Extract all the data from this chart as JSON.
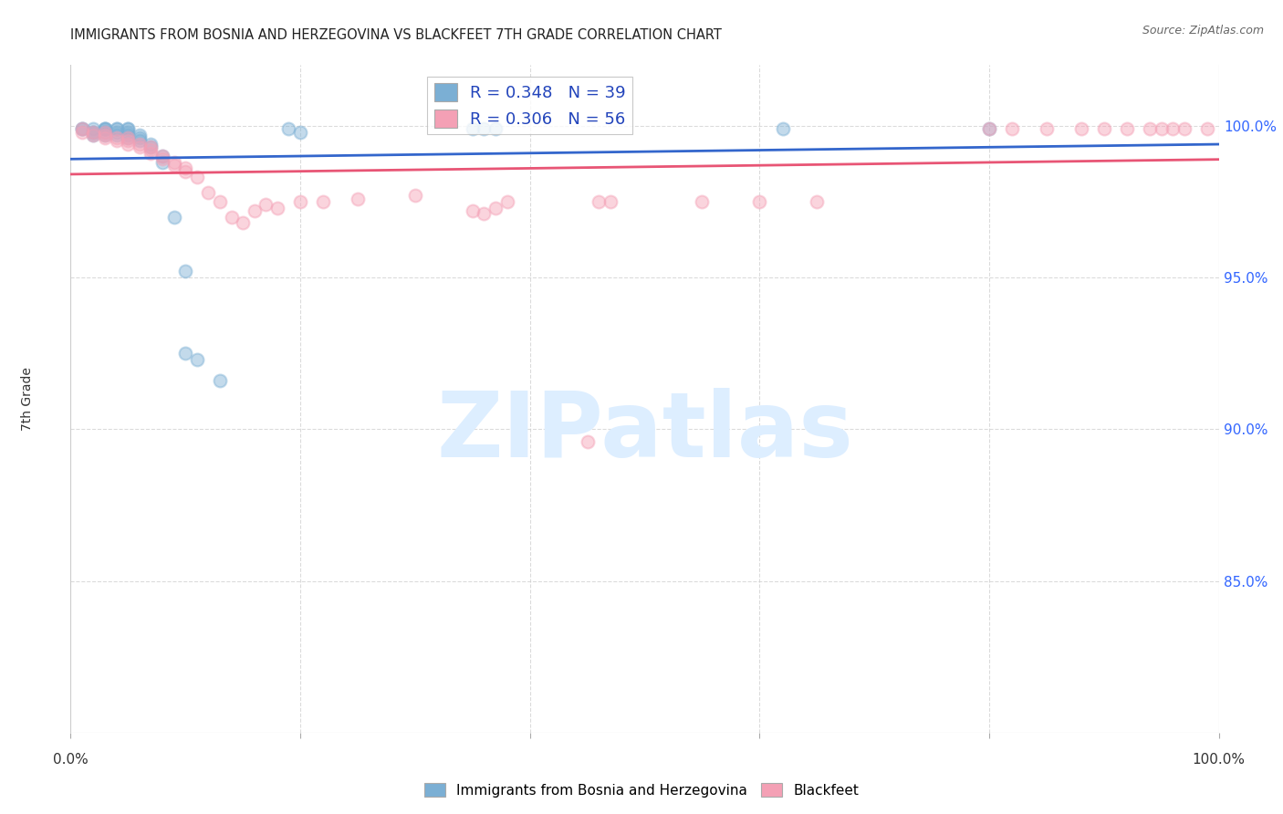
{
  "title": "IMMIGRANTS FROM BOSNIA AND HERZEGOVINA VS BLACKFEET 7TH GRADE CORRELATION CHART",
  "source": "Source: ZipAtlas.com",
  "ylabel": "7th Grade",
  "ytick_labels": [
    "85.0%",
    "90.0%",
    "95.0%",
    "100.0%"
  ],
  "ytick_values": [
    0.85,
    0.9,
    0.95,
    1.0
  ],
  "xmin": 0.0,
  "xmax": 1.0,
  "ymin": 0.8,
  "ymax": 1.02,
  "legend_label1": "Immigrants from Bosnia and Herzegovina",
  "legend_label2": "Blackfeet",
  "R1": 0.348,
  "N1": 39,
  "R2": 0.306,
  "N2": 56,
  "color1": "#7bafd4",
  "color2": "#f4a0b5",
  "trendline1_color": "#3366cc",
  "trendline2_color": "#e85575",
  "scatter1_x": [
    0.01,
    0.01,
    0.02,
    0.02,
    0.02,
    0.02,
    0.03,
    0.03,
    0.03,
    0.03,
    0.03,
    0.04,
    0.04,
    0.04,
    0.04,
    0.05,
    0.05,
    0.05,
    0.05,
    0.05,
    0.06,
    0.06,
    0.06,
    0.07,
    0.07,
    0.08,
    0.08,
    0.09,
    0.1,
    0.1,
    0.11,
    0.13,
    0.19,
    0.2,
    0.35,
    0.36,
    0.37,
    0.62,
    0.8
  ],
  "scatter1_y": [
    0.999,
    0.999,
    0.998,
    0.999,
    0.997,
    0.998,
    0.999,
    0.998,
    0.997,
    0.999,
    0.999,
    0.997,
    0.998,
    0.999,
    0.999,
    0.996,
    0.997,
    0.998,
    0.999,
    0.999,
    0.995,
    0.996,
    0.997,
    0.993,
    0.994,
    0.988,
    0.99,
    0.97,
    0.952,
    0.925,
    0.923,
    0.916,
    0.999,
    0.998,
    0.999,
    0.999,
    0.999,
    0.999,
    0.999
  ],
  "scatter2_x": [
    0.01,
    0.01,
    0.02,
    0.02,
    0.03,
    0.03,
    0.03,
    0.04,
    0.04,
    0.05,
    0.05,
    0.05,
    0.06,
    0.06,
    0.07,
    0.07,
    0.07,
    0.08,
    0.08,
    0.09,
    0.09,
    0.1,
    0.1,
    0.11,
    0.12,
    0.13,
    0.14,
    0.15,
    0.16,
    0.17,
    0.18,
    0.2,
    0.22,
    0.25,
    0.3,
    0.35,
    0.36,
    0.37,
    0.38,
    0.45,
    0.46,
    0.47,
    0.55,
    0.6,
    0.65,
    0.8,
    0.82,
    0.85,
    0.88,
    0.9,
    0.92,
    0.94,
    0.95,
    0.96,
    0.97,
    0.99
  ],
  "scatter2_y": [
    0.999,
    0.998,
    0.998,
    0.997,
    0.997,
    0.996,
    0.998,
    0.995,
    0.996,
    0.994,
    0.995,
    0.996,
    0.993,
    0.994,
    0.991,
    0.992,
    0.993,
    0.989,
    0.99,
    0.987,
    0.988,
    0.985,
    0.986,
    0.983,
    0.978,
    0.975,
    0.97,
    0.968,
    0.972,
    0.974,
    0.973,
    0.975,
    0.975,
    0.976,
    0.977,
    0.972,
    0.971,
    0.973,
    0.975,
    0.896,
    0.975,
    0.975,
    0.975,
    0.975,
    0.975,
    0.999,
    0.999,
    0.999,
    0.999,
    0.999,
    0.999,
    0.999,
    0.999,
    0.999,
    0.999,
    0.999
  ],
  "marker_size": 100,
  "marker_alpha": 0.45,
  "marker_lw": 1.5,
  "grid_color": "#cccccc",
  "background_color": "#ffffff",
  "watermark_text": "ZIPatlas",
  "watermark_color": "#ddeeff",
  "watermark_fontsize": 72
}
